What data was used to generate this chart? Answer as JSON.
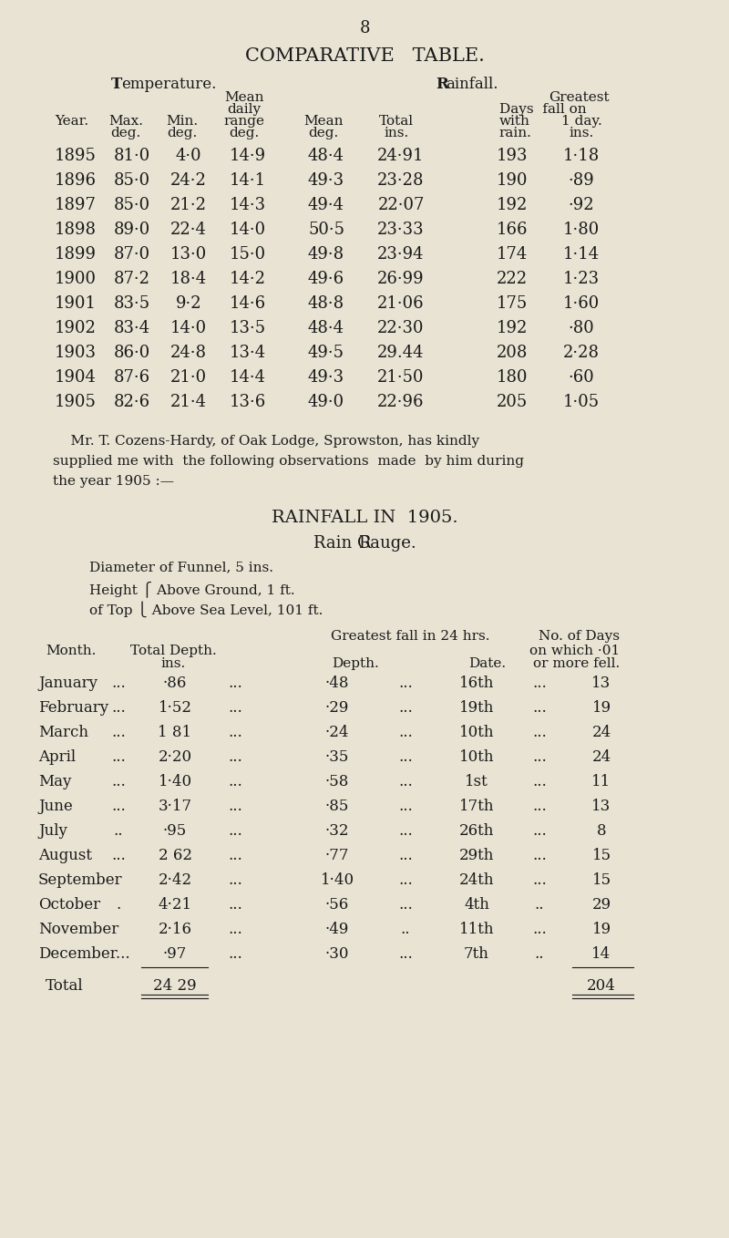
{
  "bg_color": "#e8e3d3",
  "text_color": "#1a1a1a",
  "page_number": "8",
  "comp_table_title": "COMPARATIVE   TABLE.",
  "temp_header": "Temperature.",
  "rain_header": "Rainfall.",
  "comp_data": [
    [
      "1895",
      "81·0",
      "4·0",
      "14·9",
      "48·4",
      "24·91",
      "193",
      "1·18"
    ],
    [
      "1896",
      "85·0",
      "24·2",
      "14·1",
      "49·3",
      "23·28",
      "190",
      "·89"
    ],
    [
      "1897",
      "85·0",
      "21·2",
      "14·3",
      "49·4",
      "22·07",
      "192",
      "·92"
    ],
    [
      "1898",
      "89·0",
      "22·4",
      "14·0",
      "50·5",
      "23·33",
      "166",
      "1·80"
    ],
    [
      "1899",
      "87·0",
      "13·0",
      "15·0",
      "49·8",
      "23·94",
      "174",
      "1·14"
    ],
    [
      "1900",
      "87·2",
      "18·4",
      "14·2",
      "49·6",
      "26·99",
      "222",
      "1·23"
    ],
    [
      "1901",
      "83·5",
      "9·2",
      "14·6",
      "48·8",
      "21·06",
      "175",
      "1·60"
    ],
    [
      "1902",
      "83·4",
      "14·0",
      "13·5",
      "48·4",
      "22·30",
      "192",
      "·80"
    ],
    [
      "1903",
      "86·0",
      "24·8",
      "13·4",
      "49·5",
      "29.44",
      "208",
      "2·28"
    ],
    [
      "1904",
      "87·6",
      "21·0",
      "14·4",
      "49·3",
      "21·50",
      "180",
      "·60"
    ],
    [
      "1905",
      "82·6",
      "21·4",
      "13·6",
      "49·0",
      "22·96",
      "205",
      "1·05"
    ]
  ],
  "paragraph_lines": [
    "    Mr. T. Cozens-Hardy, of Oak Lodge, Sprowston, has kindly",
    "supplied me with  the following observations  made  by him during",
    "the year 1905 :—"
  ],
  "rainfall_title": "RAINFALL IN  1905.",
  "rain_gauge_title": "Rain Gauge.",
  "rain_data": [
    [
      "January",
      "...",
      "·86",
      "...",
      "·48",
      "...",
      "16th",
      "...",
      "13"
    ],
    [
      "February",
      "...",
      "1·52",
      "...",
      "·29",
      "...",
      "19th",
      "...",
      "19"
    ],
    [
      "March",
      "...",
      "1 81",
      "...",
      "·24",
      "...",
      "10th",
      "...",
      "24"
    ],
    [
      "April",
      "...",
      "2·20",
      "...",
      "·35",
      "...",
      "10th",
      "...",
      "24"
    ],
    [
      "May",
      "...",
      "1·40",
      "...",
      "·58",
      "...",
      "1st",
      "...",
      "11"
    ],
    [
      "June",
      "...",
      "3·17",
      "...",
      "·85",
      "...",
      "17th",
      "...",
      "13"
    ],
    [
      "July",
      "..",
      "·95",
      "...",
      "·32",
      "...",
      "26th",
      "...",
      "8"
    ],
    [
      "August",
      "...",
      "2 62",
      "...",
      "·77",
      "...",
      "29th",
      "...",
      "15"
    ],
    [
      "September",
      "",
      "2·42",
      "...",
      "1·40",
      "...",
      "24th",
      "...",
      "15"
    ],
    [
      "October",
      ".",
      "4·21",
      "...",
      "·56",
      "...",
      "4th",
      "..",
      "29"
    ],
    [
      "November",
      "",
      "2·16",
      "...",
      "·49",
      "..",
      "11th",
      "...",
      "19"
    ],
    [
      "December...",
      "",
      "·97",
      "...",
      "·30",
      "...",
      "7th",
      "..",
      "14"
    ]
  ],
  "rain_total_depth": "24 29",
  "rain_total_days": "204"
}
